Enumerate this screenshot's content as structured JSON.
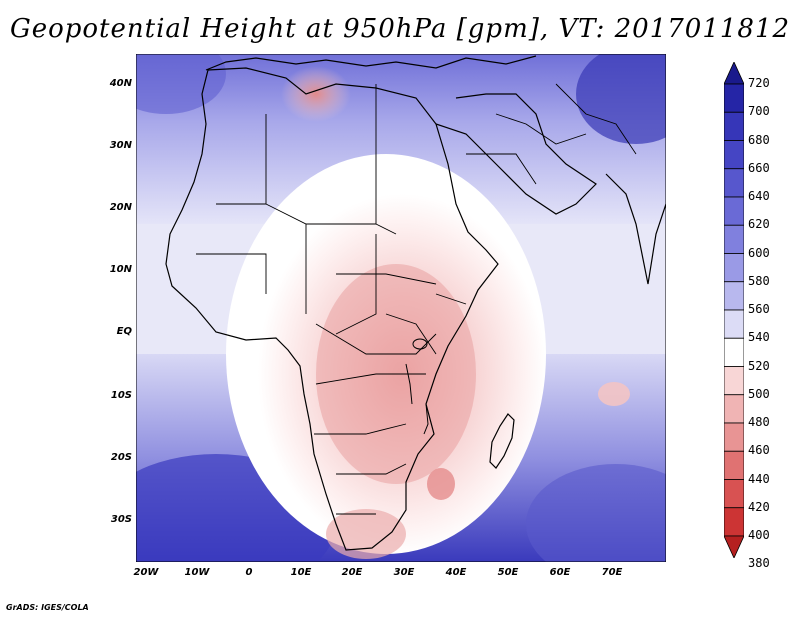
{
  "title": "Geopotential Height at 950hPa [gpm], VT: 2017011812",
  "credit": "GrADS: IGES/COLA",
  "map": {
    "region": "Africa and Middle East",
    "lon_range": [
      -25,
      80
    ],
    "lat_range": [
      -37,
      45
    ],
    "lon_ticks": [
      "20W",
      "10W",
      "0",
      "10E",
      "20E",
      "30E",
      "40E",
      "50E",
      "60E",
      "70E"
    ],
    "lat_ticks": [
      "40N",
      "30N",
      "20N",
      "10N",
      "EQ",
      "10S",
      "20S",
      "30S"
    ],
    "colors": {
      "low_red": "#b22222",
      "mid_white": "#ffffff",
      "high_blue": "#1e1e9e",
      "coastline": "#000000"
    }
  },
  "colorbar": {
    "levels": [
      "720",
      "700",
      "680",
      "660",
      "640",
      "620",
      "600",
      "580",
      "560",
      "540",
      "520",
      "500",
      "480",
      "460",
      "440",
      "420",
      "400",
      "380"
    ],
    "colors": [
      "#1a1a8c",
      "#2525a6",
      "#3636b8",
      "#4545c4",
      "#5757cd",
      "#6a6ad6",
      "#8080de",
      "#9a9ae6",
      "#b8b8ee",
      "#dcdcf6",
      "#ffffff",
      "#f8d6d6",
      "#f0b4b4",
      "#e89494",
      "#e07272",
      "#d85252",
      "#cc3434",
      "#b52020"
    ]
  }
}
